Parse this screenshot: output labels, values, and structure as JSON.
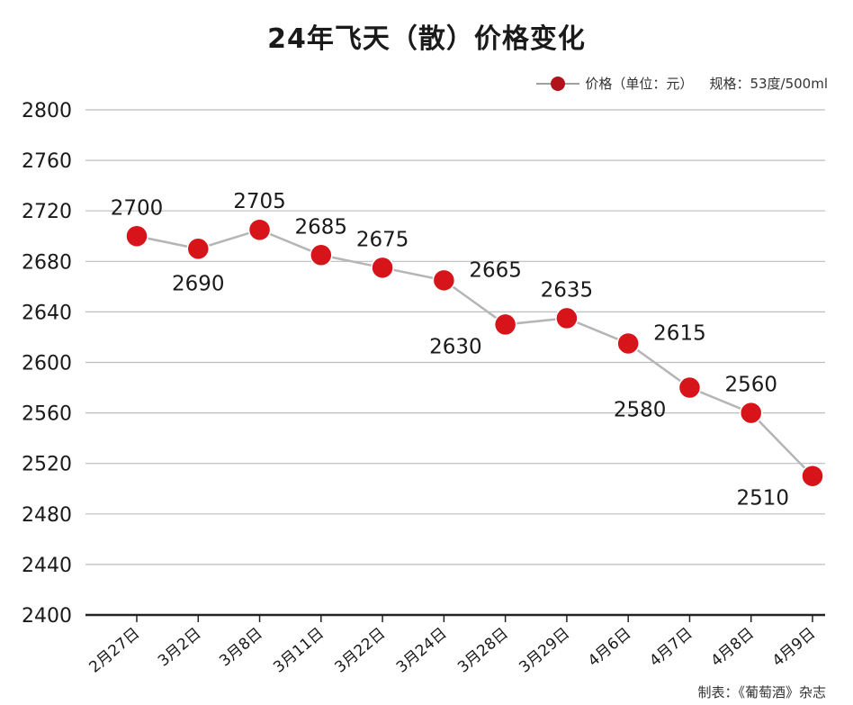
{
  "chart_data": {
    "type": "line",
    "title": "24年飞天（散）价格变化",
    "legend": {
      "position": "top-right",
      "series_label": "价格（单位：元）",
      "spec": "规格：53度/500ml"
    },
    "categories": [
      "2月27日",
      "3月2日",
      "3月8日",
      "3月11日",
      "3月22日",
      "3月24日",
      "3月28日",
      "3月29日",
      "4月6日",
      "4月7日",
      "4月8日",
      "4月9日"
    ],
    "series": [
      {
        "values": [
          2700,
          2690,
          2705,
          2685,
          2675,
          2665,
          2630,
          2635,
          2615,
          2580,
          2560,
          2510
        ]
      }
    ],
    "ylim": [
      2400,
      2800
    ],
    "yticks": [
      2400,
      2440,
      2480,
      2520,
      2560,
      2600,
      2640,
      2680,
      2720,
      2760,
      2800
    ],
    "grid": true,
    "colors": {
      "marker": "#d7141a",
      "line": "#b5b5b5",
      "grid": "#bdbdbd",
      "axis": "#222222"
    }
  },
  "credit": "制表：《葡萄酒》杂志"
}
